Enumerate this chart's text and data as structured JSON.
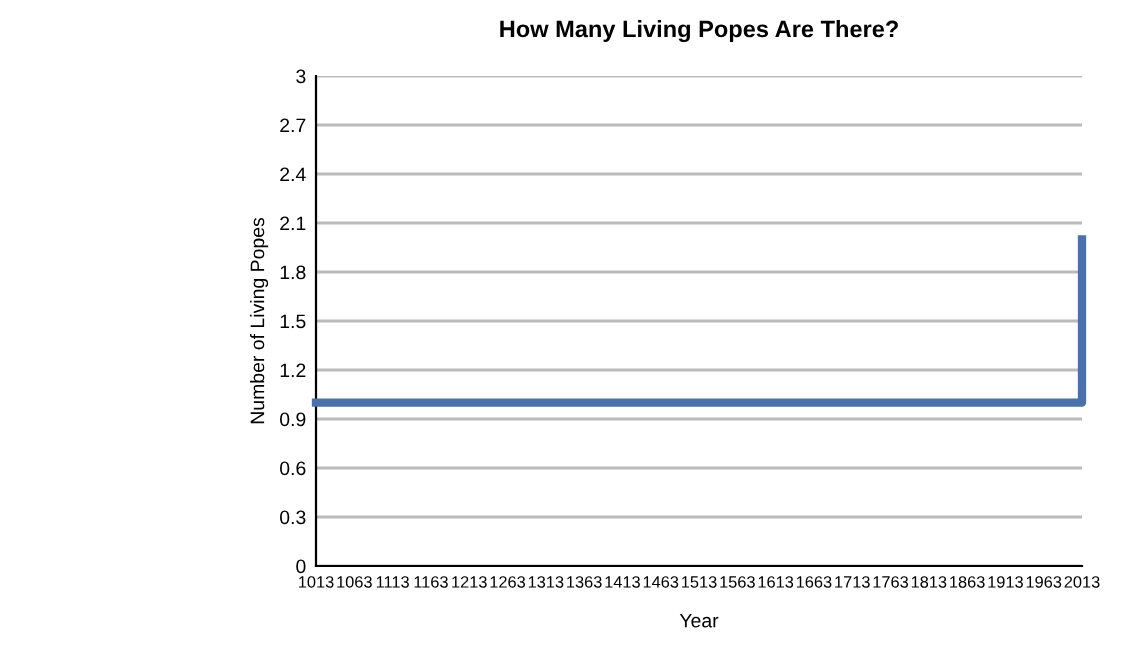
{
  "chart_data": {
    "type": "step",
    "title": "How Many Living Popes Are There?",
    "xlabel": "Year",
    "ylabel": "Number of Living Popes",
    "categories": [
      "1013",
      "1063",
      "1113",
      "1163",
      "1213",
      "1263",
      "1313",
      "1363",
      "1413",
      "1463",
      "1513",
      "1563",
      "1613",
      "1663",
      "1713",
      "1763",
      "1813",
      "1863",
      "1913",
      "1963",
      "2013"
    ],
    "series": [
      {
        "color": "#4a72a8",
        "values": [
          1,
          1,
          1,
          1,
          1,
          1,
          1,
          1,
          1,
          1,
          1,
          1,
          1,
          1,
          1,
          1,
          1,
          1,
          1,
          1,
          2
        ]
      }
    ],
    "ylim": [
      0,
      3
    ],
    "yticks": [
      0,
      0.3,
      0.6,
      0.9,
      1.2,
      1.5,
      1.8,
      2.1,
      2.4,
      2.7,
      3
    ],
    "grid": "y",
    "marker": "none",
    "line_style": "solid"
  }
}
